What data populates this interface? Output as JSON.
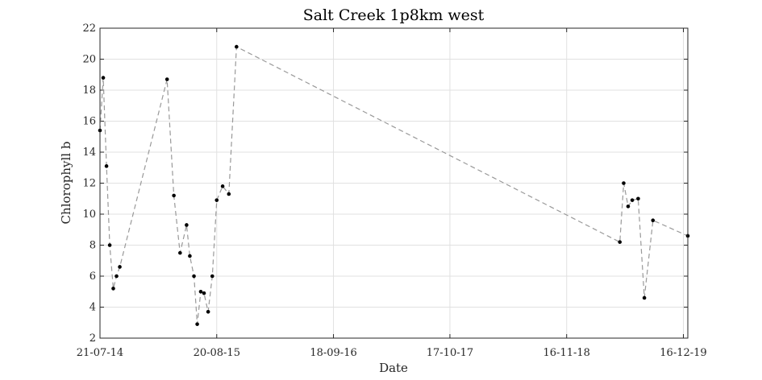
{
  "chart_data": {
    "type": "line",
    "title": "Salt Creek 1p8km west",
    "xlabel": "Date",
    "ylabel": "Chlorophyll b",
    "ylim": [
      2,
      22
    ],
    "yticks": [
      2,
      4,
      6,
      8,
      10,
      12,
      14,
      16,
      18,
      20,
      22
    ],
    "xlim": [
      "2014-07-21",
      "2019-12-31"
    ],
    "xticks": [
      {
        "date": "2014-07-21",
        "label": "21-07-14"
      },
      {
        "date": "2015-08-20",
        "label": "20-08-15"
      },
      {
        "date": "2016-09-18",
        "label": "18-09-16"
      },
      {
        "date": "2017-10-17",
        "label": "17-10-17"
      },
      {
        "date": "2018-11-16",
        "label": "16-11-18"
      },
      {
        "date": "2019-12-16",
        "label": "16-12-19"
      }
    ],
    "grid": true,
    "line_color": "#999999",
    "marker_color": "#000000",
    "series": [
      {
        "points": [
          {
            "x": "2014-07-21",
            "y": 15.4
          },
          {
            "x": "2014-08-01",
            "y": 18.8
          },
          {
            "x": "2014-08-12",
            "y": 13.1
          },
          {
            "x": "2014-08-23",
            "y": 8.0
          },
          {
            "x": "2014-09-04",
            "y": 5.2
          },
          {
            "x": "2014-09-15",
            "y": 6.0
          },
          {
            "x": "2014-09-26",
            "y": 6.6
          },
          {
            "x": "2015-03-05",
            "y": 18.7
          },
          {
            "x": "2015-03-28",
            "y": 11.2
          },
          {
            "x": "2015-04-18",
            "y": 7.5
          },
          {
            "x": "2015-05-10",
            "y": 9.3
          },
          {
            "x": "2015-05-21",
            "y": 7.3
          },
          {
            "x": "2015-06-04",
            "y": 6.0
          },
          {
            "x": "2015-06-15",
            "y": 2.9
          },
          {
            "x": "2015-06-27",
            "y": 5.0
          },
          {
            "x": "2015-07-08",
            "y": 4.9
          },
          {
            "x": "2015-07-22",
            "y": 3.7
          },
          {
            "x": "2015-08-05",
            "y": 6.0
          },
          {
            "x": "2015-08-20",
            "y": 10.9
          },
          {
            "x": "2015-09-09",
            "y": 11.8
          },
          {
            "x": "2015-09-30",
            "y": 11.3
          },
          {
            "x": "2015-10-26",
            "y": 20.8
          },
          {
            "x": "2019-05-15",
            "y": 8.2
          },
          {
            "x": "2019-05-28",
            "y": 12.0
          },
          {
            "x": "2019-06-12",
            "y": 10.5
          },
          {
            "x": "2019-06-26",
            "y": 10.9
          },
          {
            "x": "2019-07-16",
            "y": 11.0
          },
          {
            "x": "2019-08-06",
            "y": 4.6
          },
          {
            "x": "2019-09-04",
            "y": 9.6
          },
          {
            "x": "2019-12-31",
            "y": 8.6
          }
        ]
      }
    ]
  }
}
